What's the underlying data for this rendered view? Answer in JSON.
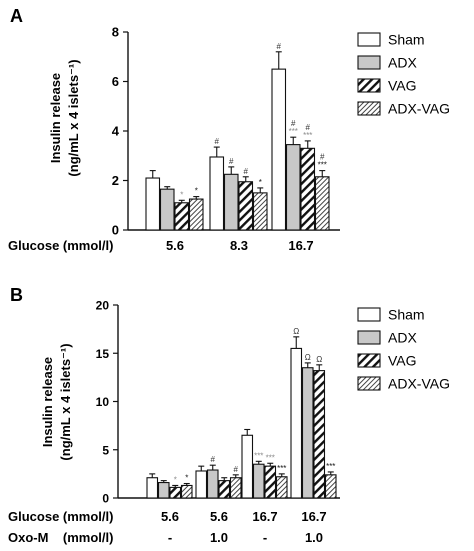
{
  "chart_data": [
    {
      "type": "bar",
      "panel": "A",
      "ylabel_line1": "Insulin release",
      "ylabel_line2": "(ng/mL x 4 islets⁻¹)",
      "ylim": [
        0,
        8
      ],
      "yticks": [
        0,
        2,
        4,
        6,
        8
      ],
      "row_labels": [
        {
          "label": "Glucose (mmol/l)",
          "values": [
            "5.6",
            "8.3",
            "16.7"
          ]
        }
      ],
      "categories": [
        "5.6",
        "8.3",
        "16.7"
      ],
      "series": [
        {
          "name": "Sham",
          "values": [
            2.1,
            2.95,
            6.5
          ],
          "errors": [
            0.3,
            0.4,
            0.7
          ],
          "marks": [
            "",
            "#",
            "#"
          ]
        },
        {
          "name": "ADX",
          "values": [
            1.65,
            2.25,
            3.45
          ],
          "errors": [
            0.1,
            0.3,
            0.3
          ],
          "marks": [
            "",
            "#",
            "#\n***"
          ]
        },
        {
          "name": "VAG",
          "values": [
            1.1,
            1.95,
            3.3
          ],
          "errors": [
            0.1,
            0.2,
            0.3
          ],
          "marks": [
            "*",
            "#",
            "#\n***"
          ]
        },
        {
          "name": "ADX-VAG",
          "values": [
            1.25,
            1.5,
            2.15
          ],
          "errors": [
            0.1,
            0.2,
            0.25
          ],
          "marks": [
            "*",
            "*",
            "#\n***"
          ]
        }
      ],
      "legend_position": "right"
    },
    {
      "type": "bar",
      "panel": "B",
      "ylabel_line1": "Insulin release",
      "ylabel_line2": "(ng/mL x 4 islets⁻¹)",
      "ylim": [
        0,
        20
      ],
      "yticks": [
        0,
        5,
        10,
        15,
        20
      ],
      "row_labels": [
        {
          "label": "Glucose (mmol/l)",
          "values": [
            "5.6",
            "5.6",
            "16.7",
            "16.7"
          ]
        },
        {
          "label": "Oxo-M    (mmol/l)",
          "values": [
            "-",
            "1.0",
            "-",
            "1.0"
          ]
        }
      ],
      "categories": [
        "5.6 / -",
        "5.6 / 1.0",
        "16.7 / -",
        "16.7 / 1.0"
      ],
      "series": [
        {
          "name": "Sham",
          "values": [
            2.1,
            2.8,
            6.5,
            15.5
          ],
          "errors": [
            0.4,
            0.5,
            0.6,
            1.2
          ],
          "marks": [
            "",
            "",
            "",
            "Ω"
          ]
        },
        {
          "name": "ADX",
          "values": [
            1.6,
            2.9,
            3.5,
            13.5
          ],
          "errors": [
            0.2,
            0.5,
            0.3,
            0.5
          ],
          "marks": [
            "",
            "#",
            "***",
            "Ω"
          ]
        },
        {
          "name": "VAG",
          "values": [
            1.1,
            1.8,
            3.3,
            13.2
          ],
          "errors": [
            0.2,
            0.3,
            0.3,
            0.6
          ],
          "marks": [
            "*",
            "",
            "***",
            "Ω"
          ]
        },
        {
          "name": "ADX-VAG",
          "values": [
            1.3,
            2.1,
            2.2,
            2.4
          ],
          "errors": [
            0.2,
            0.3,
            0.3,
            0.3
          ],
          "marks": [
            "*",
            "#",
            "***",
            "***"
          ]
        }
      ],
      "legend_position": "right"
    }
  ],
  "colors": {
    "sham": "#ffffff",
    "adx": "#c8c8c8",
    "vag_hatch": "#111111",
    "adxvag_hatch": "#555555",
    "mark_gray": "#8a8a8a"
  }
}
